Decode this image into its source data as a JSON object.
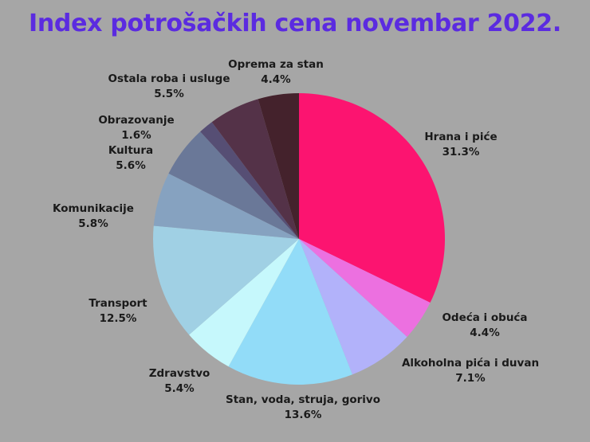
{
  "chart_data": {
    "type": "pie",
    "title": "Index potrošačkih cena novembar 2022.",
    "start_angle_deg": 0,
    "direction": "clockwise",
    "unit": "%",
    "slices": [
      {
        "label": "Hrana i piće",
        "value": 31.3,
        "color": "#fc1470"
      },
      {
        "label": "Odeća i obuća",
        "value": 4.4,
        "color": "#ec70e0"
      },
      {
        "label": "Alkoholna pića i duvan",
        "value": 7.1,
        "color": "#b2b2fa"
      },
      {
        "label": "Stan, voda, struja, gorivo",
        "value": 13.6,
        "color": "#92dcf8"
      },
      {
        "label": "Zdravstvo",
        "value": 5.4,
        "color": "#c6f8fc"
      },
      {
        "label": "Transport",
        "value": 12.5,
        "color": "#a0d0e4"
      },
      {
        "label": "Komunikacije",
        "value": 5.8,
        "color": "#86a2c0"
      },
      {
        "label": "Kultura",
        "value": 5.6,
        "color": "#6a7898"
      },
      {
        "label": "Obrazovanje",
        "value": 1.6,
        "color": "#564e74"
      },
      {
        "label": "Ostala roba i usluge",
        "value": 5.5,
        "color": "#543248"
      },
      {
        "label": "Oprema za stan",
        "value": 4.4,
        "color": "#44222c"
      }
    ],
    "labels_display": [
      {
        "name": "Hrana i piće",
        "pct": "31.3%"
      },
      {
        "name": "Odeća i obuća",
        "pct": "4.4%"
      },
      {
        "name": "Alkoholna pića i duvan",
        "pct": "7.1%"
      },
      {
        "name": "Stan, voda, struja, gorivo",
        "pct": "13.6%"
      },
      {
        "name": "Zdravstvo",
        "pct": "5.4%"
      },
      {
        "name": "Transport",
        "pct": "12.5%"
      },
      {
        "name": "Komunikacije",
        "pct": "5.8%"
      },
      {
        "name": "Kultura",
        "pct": "5.6%"
      },
      {
        "name": "Obrazovanje",
        "pct": "1.6%"
      },
      {
        "name": "Ostala roba i usluge",
        "pct": "5.5%"
      },
      {
        "name": "Oprema za stan",
        "pct": "4.4%"
      }
    ],
    "legend": "none (direct labels)"
  },
  "colors": {
    "background": "#a6a6a6",
    "title": "#5b2be0",
    "label_text": "#1a1a1a"
  }
}
